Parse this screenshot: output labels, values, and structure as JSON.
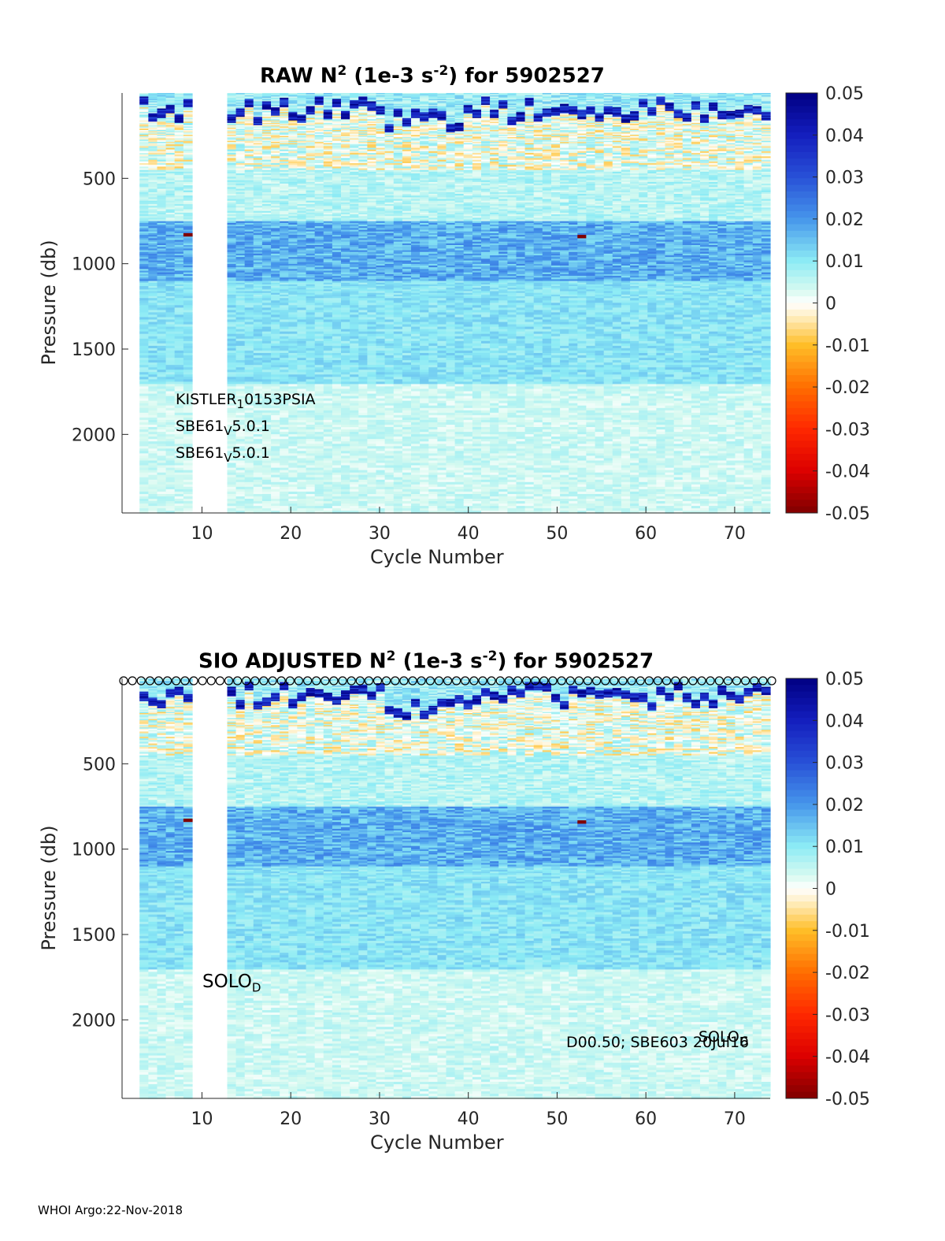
{
  "footer": "WHOI Argo:22-Nov-2018",
  "chart_data": [
    {
      "type": "heatmap",
      "title": {
        "main": "RAW N",
        "sup1": "2",
        "mid": " (1e-3 s",
        "sup2": "-2",
        "end": ") for 5902527"
      },
      "xlabel": "Cycle Number",
      "ylabel": "Pressure (db)",
      "xlim": [
        1,
        74
      ],
      "ylim": [
        2460,
        0
      ],
      "xticks": [
        10,
        20,
        30,
        40,
        50,
        60,
        70
      ],
      "yticks": [
        500,
        1000,
        1500,
        2000
      ],
      "colorbar": {
        "min": -0.05,
        "max": 0.05,
        "ticks": [
          "0.05",
          "0.04",
          "0.03",
          "0.02",
          "0.01",
          "0",
          "-0.01",
          "-0.02",
          "-0.03",
          "-0.04",
          "-0.05"
        ],
        "colormap": "jet-with-white-center"
      },
      "missing_cycles": [
        1,
        2,
        9,
        10,
        11,
        12
      ],
      "annotations": [
        {
          "base": "KISTLER",
          "sub": "1",
          "rest": "0153PSIA"
        },
        {
          "base": "SBE61",
          "sub": "V",
          "rest": "5.0.1"
        },
        {
          "base": "SBE61",
          "sub": "V",
          "rest": "5.0.1"
        }
      ]
    },
    {
      "type": "heatmap",
      "title": {
        "main": "SIO  ADJUSTED N",
        "sup1": "2",
        "mid": " (1e-3 s",
        "sup2": "-2",
        "end": ") for 5902527"
      },
      "xlabel": "Cycle Number",
      "ylabel": "Pressure (db)",
      "xlim": [
        1,
        74
      ],
      "ylim": [
        2460,
        0
      ],
      "xticks": [
        10,
        20,
        30,
        40,
        50,
        60,
        70
      ],
      "yticks": [
        500,
        1000,
        1500,
        2000
      ],
      "colorbar": {
        "min": -0.05,
        "max": 0.05,
        "ticks": [
          "0.05",
          "0.04",
          "0.03",
          "0.02",
          "0.01",
          "0",
          "-0.01",
          "-0.02",
          "-0.03",
          "-0.04",
          "-0.05"
        ],
        "colormap": "jet-with-white-center"
      },
      "missing_cycles": [
        1,
        2,
        9,
        10,
        11,
        12
      ],
      "surface_markers": "o along top edge for each cycle",
      "annotations": [
        {
          "base": "SOLO",
          "sub": "D",
          "rest": ""
        },
        {
          "text": "D00.50; SBE603 20Jul16"
        },
        {
          "base": "SOLO",
          "sub": "D",
          "rest": ""
        }
      ]
    }
  ]
}
